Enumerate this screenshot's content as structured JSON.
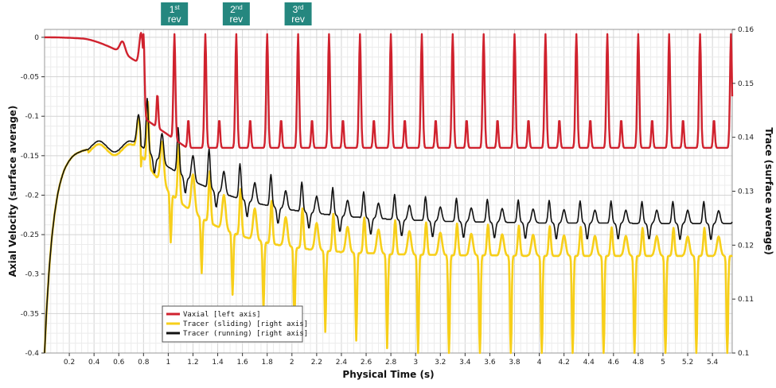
{
  "chart_data": {
    "type": "line",
    "xlabel": "Physical Time (s)",
    "ylabel_left": "Axial Velocity (surface average)",
    "ylabel_right": "Trace (surface average)",
    "xlim": [
      0,
      5.56
    ],
    "ylim_left": [
      -0.4,
      0.01
    ],
    "ylim_right": [
      0.1,
      0.16
    ],
    "x_ticks": [
      "0.2",
      "0.4",
      "0.6",
      "0.8",
      "1",
      "1.2",
      "1.4",
      "1.6",
      "1.8",
      "2",
      "2.2",
      "2.4",
      "2.6",
      "2.8",
      "3",
      "3.2",
      "3.4",
      "3.6",
      "3.8",
      "4",
      "4.2",
      "4.4",
      "4.6",
      "4.8",
      "5",
      "5.2",
      "5.4"
    ],
    "y_ticks_left": [
      "0",
      "-0.05",
      "-0.1",
      "-0.15",
      "-0.2",
      "-0.25",
      "-0.3",
      "-0.35",
      "-0.4"
    ],
    "y_ticks_right": [
      "0.16",
      "0.15",
      "0.14",
      "0.13",
      "0.12",
      "0.11",
      "0.1"
    ],
    "grid": true,
    "legend_position": "bottom-left",
    "colors": {
      "vaxial": "#d0222e",
      "sliding": "#f7cf1a",
      "running": "#111111",
      "marker": "#25877f"
    },
    "series": [
      {
        "name": "Vaxial [left axis]",
        "axis": "left",
        "x": [],
        "values": []
      },
      {
        "name": "Tracer (sliding) [right axis]",
        "axis": "right",
        "x": [],
        "values": []
      },
      {
        "name": "Tracer (running) [right axis]",
        "axis": "right",
        "x": [],
        "values": []
      }
    ],
    "annotations": [
      {
        "num": "1",
        "sup": "st",
        "word": "rev",
        "x": 1.05
      },
      {
        "num": "2",
        "sup": "nd",
        "word": "rev",
        "x": 1.55
      },
      {
        "num": "3",
        "sup": "rd",
        "word": "rev",
        "x": 2.05
      }
    ]
  }
}
